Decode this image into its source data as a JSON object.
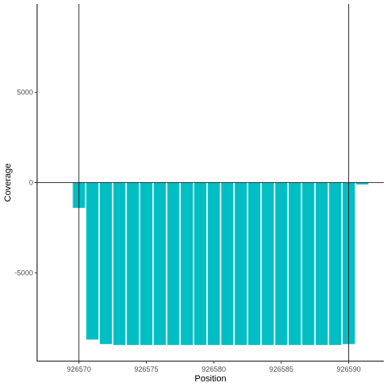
{
  "chart_data": {
    "type": "bar",
    "title": "",
    "xlabel": "Position",
    "ylabel": "Coverage",
    "xlim": [
      926566.9,
      926592.6
    ],
    "ylim": [
      -9900,
      9900
    ],
    "x_ticks": [
      926570,
      926575,
      926580,
      926585,
      926590
    ],
    "y_ticks": [
      -5000,
      0,
      5000
    ],
    "x_tick_labels": [
      "926570",
      "926575",
      "926580",
      "926585",
      "926590"
    ],
    "y_tick_labels": [
      "-5000",
      "0",
      "5000"
    ],
    "reference_lines": {
      "vertical": [
        926570,
        926590
      ],
      "horizontal": [
        0
      ]
    },
    "bar_color": "#00BFC4",
    "grid": false,
    "x": [
      926570,
      926571,
      926572,
      926573,
      926574,
      926575,
      926576,
      926577,
      926578,
      926579,
      926580,
      926581,
      926582,
      926583,
      926584,
      926585,
      926586,
      926587,
      926588,
      926589,
      926590,
      926591
    ],
    "values": [
      -1400,
      -8700,
      -8950,
      -9000,
      -9000,
      -9000,
      -9000,
      -9000,
      -9000,
      -9000,
      -9000,
      -9000,
      -9000,
      -9000,
      -9000,
      -9000,
      -9000,
      -9000,
      -9000,
      -9000,
      -8950,
      -100
    ]
  }
}
